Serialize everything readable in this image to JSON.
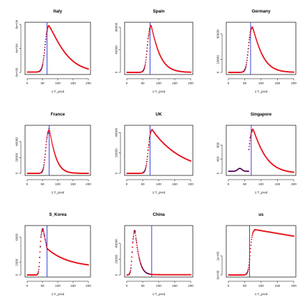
{
  "figure": {
    "colors": {
      "fit": "#e8141e",
      "observed": "#1a1a8c",
      "cut_line": "#1f2bd6"
    }
  },
  "chart_data": [
    {
      "type": "scatter",
      "title": "Italy",
      "xlabel": "1:T_pred",
      "ylabel": "",
      "xlim": [
        0,
        200
      ],
      "ylim": [
        0,
        80000
      ],
      "xticks": [
        0,
        50,
        100,
        150,
        200
      ],
      "yticks": [
        0,
        40000,
        80000
      ],
      "ytick_labels": [
        "0e+00",
        "4e+04",
        "8e+04"
      ],
      "vline_x": 65,
      "observed_to_x": 65,
      "curve": {
        "base": 500,
        "peak_x": 70,
        "peak_y": 78000,
        "rise": 14,
        "decay": 60,
        "decay_pow": 1.25
      },
      "grid": false
    },
    {
      "type": "scatter",
      "title": "Spain",
      "xlabel": "1:T_pred",
      "ylabel": "",
      "xlim": [
        0,
        200
      ],
      "ylim": [
        0,
        85000
      ],
      "xticks": [
        0,
        50,
        100,
        150,
        200
      ],
      "yticks": [
        0,
        40000,
        80000
      ],
      "ytick_labels": [
        "0",
        "40000",
        "80000"
      ],
      "vline_x": 73,
      "observed_to_x": 73,
      "curve": {
        "base": 0,
        "peak_x": 76,
        "peak_y": 83000,
        "rise": 12,
        "decay": 28,
        "decay_pow": 1.15
      },
      "grid": false
    },
    {
      "type": "scatter",
      "title": "Germany",
      "xlabel": "1:T_pred",
      "ylabel": "",
      "xlim": [
        0,
        200
      ],
      "ylim": [
        0,
        75000
      ],
      "xticks": [
        0,
        50,
        100,
        150,
        200
      ],
      "yticks": [
        0,
        20000,
        60000
      ],
      "ytick_labels": [
        "0",
        "20000",
        "60000"
      ],
      "vline_x": 68,
      "observed_to_x": 68,
      "curve": {
        "base": 0,
        "peak_x": 73,
        "peak_y": 71000,
        "rise": 12,
        "decay": 32,
        "decay_pow": 1.2
      },
      "grid": false
    },
    {
      "type": "scatter",
      "title": "France",
      "xlabel": "1:T_pred",
      "ylabel": "",
      "xlim": [
        0,
        200
      ],
      "ylim": [
        0,
        58000
      ],
      "xticks": [
        0,
        50,
        100,
        150,
        200
      ],
      "yticks": [
        0,
        20000,
        40000
      ],
      "ytick_labels": [
        "0",
        "20000",
        "40000"
      ],
      "vline_x": 72,
      "observed_to_x": 72,
      "curve": {
        "base": 0,
        "peak_x": 72,
        "peak_y": 55000,
        "rise": 11,
        "decay": 22,
        "decay_pow": 1.2
      },
      "grid": false
    },
    {
      "type": "scatter",
      "title": "UK",
      "xlabel": "1:T_pred",
      "ylabel": "",
      "xlim": [
        0,
        200
      ],
      "ylim": [
        0,
        45000
      ],
      "xticks": [
        0,
        50,
        100,
        150,
        200
      ],
      "yticks": [
        0,
        20000,
        40000
      ],
      "ytick_labels": [
        "0",
        "20000",
        "40000"
      ],
      "vline_x": 73,
      "observed_to_x": 73,
      "curve": {
        "base": 0,
        "peak_x": 79,
        "peak_y": 43000,
        "rise": 12,
        "decay": 95,
        "decay_pow": 1.0
      },
      "grid": false
    },
    {
      "type": "scatter",
      "title": "Singapore",
      "xlabel": "1:T_pred",
      "ylabel": "",
      "xlim": [
        0,
        200
      ],
      "ylim": [
        0,
        1300
      ],
      "xticks": [
        0,
        50,
        100,
        150,
        200
      ],
      "yticks": [
        0,
        400,
        800
      ],
      "ytick_labels": [
        "0",
        "400",
        "800"
      ],
      "vline_x": 70,
      "observed_to_x": 73,
      "curve": {
        "base": 60,
        "peak_x": 75,
        "peak_y": 1250,
        "rise": 11,
        "decay": 40,
        "decay_pow": 1.15,
        "bump_x": 35,
        "bump_y": 80
      },
      "grid": false
    },
    {
      "type": "scatter",
      "title": "S_Korea",
      "xlabel": "1:T_pred",
      "ylabel": "",
      "xlim": [
        0,
        200
      ],
      "ylim": [
        0,
        7500
      ],
      "xticks": [
        0,
        50,
        100,
        150,
        200
      ],
      "yticks": [
        0,
        2000,
        6000
      ],
      "ytick_labels": [
        "0",
        "2000",
        "6000"
      ],
      "vline_x": 65,
      "observed_to_x": 65,
      "curve": {
        "shape": "korea",
        "base": 0,
        "peak_x": 52,
        "peak_y": 7300,
        "plateau_y": 4200,
        "plateau_x": 65,
        "end_y": 1600,
        "rise": 6
      },
      "grid": false
    },
    {
      "type": "scatter",
      "title": "China",
      "xlabel": "1:T_pred",
      "ylabel": "",
      "xlim": [
        0,
        200
      ],
      "ylim": [
        0,
        60000
      ],
      "xticks": [
        0,
        50,
        100,
        150,
        200
      ],
      "yticks": [
        0,
        20000,
        40000
      ],
      "ytick_labels": [
        "0",
        "20000",
        "40000"
      ],
      "vline_x": 78,
      "observed_to_x": 78,
      "curve": {
        "shape": "china",
        "base": 0,
        "peak_x": 25,
        "peak_y": 58000,
        "rise": 6,
        "decay": 14,
        "decay_pow": 1.2
      },
      "grid": false
    },
    {
      "type": "scatter",
      "title": "us",
      "xlabel": "1:T_pred",
      "ylabel": "",
      "xlim": [
        0,
        200
      ],
      "ylim": [
        0,
        500000
      ],
      "xticks": [
        0,
        50,
        100,
        150,
        200
      ],
      "yticks": [
        0,
        200000
      ],
      "ytick_labels": [
        "0e+00",
        "2e+05"
      ],
      "vline_x": 65,
      "observed_to_x": 65,
      "curve": {
        "shape": "us",
        "base": 0,
        "peak_x": 80,
        "peak_y": 480000,
        "end_y": 410000,
        "rise": 10
      },
      "grid": false
    }
  ]
}
